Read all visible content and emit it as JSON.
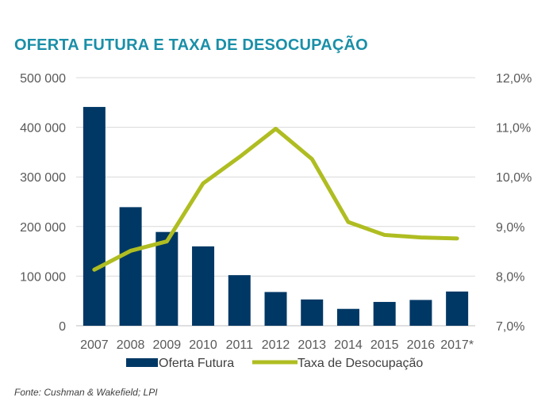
{
  "chart_data": {
    "type": "bar",
    "title": "OFERTA FUTURA E TAXA DE DESOCUPAÇÃO",
    "categories": [
      "2007",
      "2008",
      "2009",
      "2010",
      "2011",
      "2012",
      "2013",
      "2014",
      "2015",
      "2016",
      "2017*"
    ],
    "series": [
      {
        "name": "Oferta Futura",
        "type": "bar",
        "axis": "left",
        "color": "#003865",
        "values": [
          441000,
          239000,
          189000,
          160000,
          102000,
          68000,
          53000,
          34000,
          48000,
          52000,
          69000
        ]
      },
      {
        "name": "Taxa de Desocupação",
        "type": "line",
        "axis": "right",
        "color": "#afbd21",
        "values": [
          8.13,
          8.51,
          8.7,
          9.87,
          10.4,
          10.97,
          10.36,
          9.09,
          8.83,
          8.78,
          8.76
        ]
      }
    ],
    "left_axis": {
      "ylim": [
        0,
        500000
      ],
      "ticks": [
        0,
        100000,
        200000,
        300000,
        400000,
        500000
      ],
      "tick_labels": [
        "0",
        "100 000",
        "200 000",
        "300 000",
        "400 000",
        "500 000"
      ]
    },
    "right_axis": {
      "ylim": [
        7.0,
        12.0
      ],
      "ticks": [
        7,
        8,
        9,
        10,
        11,
        12
      ],
      "tick_labels": [
        "7,0%",
        "8,0%",
        "9,0%",
        "10,0%",
        "11,0%",
        "12,0%"
      ]
    },
    "grid": true,
    "legend": "bottom"
  },
  "source": "Fonte: Cushman & Wakefield; LPI"
}
